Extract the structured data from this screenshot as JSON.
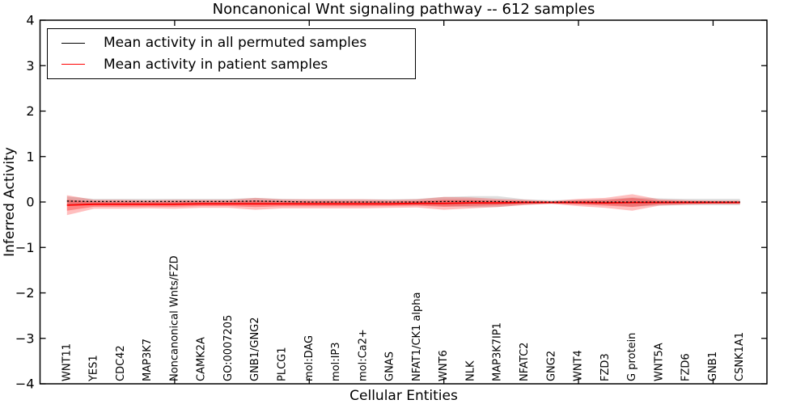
{
  "figure": {
    "title": "Noncanonical Wnt signaling pathway -- 612 samples",
    "xlabel": "Cellular Entities",
    "ylabel": "Inferred Activity"
  },
  "legend": {
    "items": [
      {
        "label": "Mean activity in all permuted samples",
        "color": "#000000"
      },
      {
        "label": "Mean activity in patient samples",
        "color": "#ff0000"
      }
    ]
  },
  "chart_data": {
    "type": "line",
    "title": "Noncanonical Wnt signaling pathway -- 612 samples",
    "xlabel": "Cellular Entities",
    "ylabel": "Inferred Activity",
    "ylim": [
      -4,
      4
    ],
    "yticks": [
      -4,
      -3,
      -2,
      -1,
      0,
      1,
      2,
      3,
      4
    ],
    "xlim": [
      0,
      27
    ],
    "xtick_positions": [
      5,
      10,
      15,
      20,
      25
    ],
    "grid": false,
    "legend_position": "upper left",
    "categories": [
      "WNT11",
      "YES1",
      "CDC42",
      "MAP3K7",
      "Noncanonical Wnts/FZD",
      "CAMK2A",
      "GO:0007205",
      "GNB1/GNG2",
      "PLCG1",
      "mol:DAG",
      "mol:IP3",
      "mol:Ca2+",
      "GNAS",
      "NFAT1/CK1 alpha",
      "WNT6",
      "NLK",
      "MAP3K7IP1",
      "NFATC2",
      "GNG2",
      "WNT4",
      "FZD3",
      "G protein",
      "WNT5A",
      "FZD6",
      "GNB1",
      "CSNK1A1"
    ],
    "series": [
      {
        "name": "Mean activity in all permuted samples",
        "color": "#000000",
        "line_style": "dashed",
        "band_color": "rgba(0,0,0,0.13)",
        "values": [
          0.02,
          0.01,
          0.01,
          0.01,
          0.01,
          0.01,
          0.01,
          0.02,
          0.01,
          0.0,
          0.0,
          0.0,
          0.0,
          0.0,
          0.01,
          0.01,
          0.01,
          0.0,
          0.0,
          0.0,
          0.0,
          0.0,
          0.0,
          0.0,
          0.0,
          0.0
        ],
        "band_halfwidth": [
          0.1,
          0.06,
          0.06,
          0.06,
          0.06,
          0.06,
          0.06,
          0.07,
          0.06,
          0.06,
          0.06,
          0.06,
          0.06,
          0.07,
          0.1,
          0.12,
          0.12,
          0.06,
          0.04,
          0.05,
          0.06,
          0.1,
          0.08,
          0.07,
          0.07,
          0.07
        ]
      },
      {
        "name": "Mean activity in patient samples",
        "color": "#ff0000",
        "line_style": "solid",
        "band_color": "rgba(255,0,0,0.25)",
        "inner_band_color": "rgba(255,0,0,0.30)",
        "values": [
          -0.07,
          -0.05,
          -0.05,
          -0.05,
          -0.05,
          -0.04,
          -0.04,
          -0.04,
          -0.04,
          -0.04,
          -0.04,
          -0.04,
          -0.04,
          -0.03,
          -0.03,
          -0.02,
          -0.02,
          -0.01,
          -0.01,
          -0.01,
          -0.02,
          -0.01,
          -0.01,
          -0.01,
          -0.01,
          -0.01
        ],
        "band_halfwidth": [
          0.22,
          0.1,
          0.1,
          0.09,
          0.1,
          0.09,
          0.09,
          0.13,
          0.1,
          0.1,
          0.1,
          0.1,
          0.09,
          0.09,
          0.14,
          0.12,
          0.09,
          0.06,
          0.03,
          0.08,
          0.11,
          0.18,
          0.07,
          0.05,
          0.04,
          0.04
        ]
      }
    ]
  }
}
